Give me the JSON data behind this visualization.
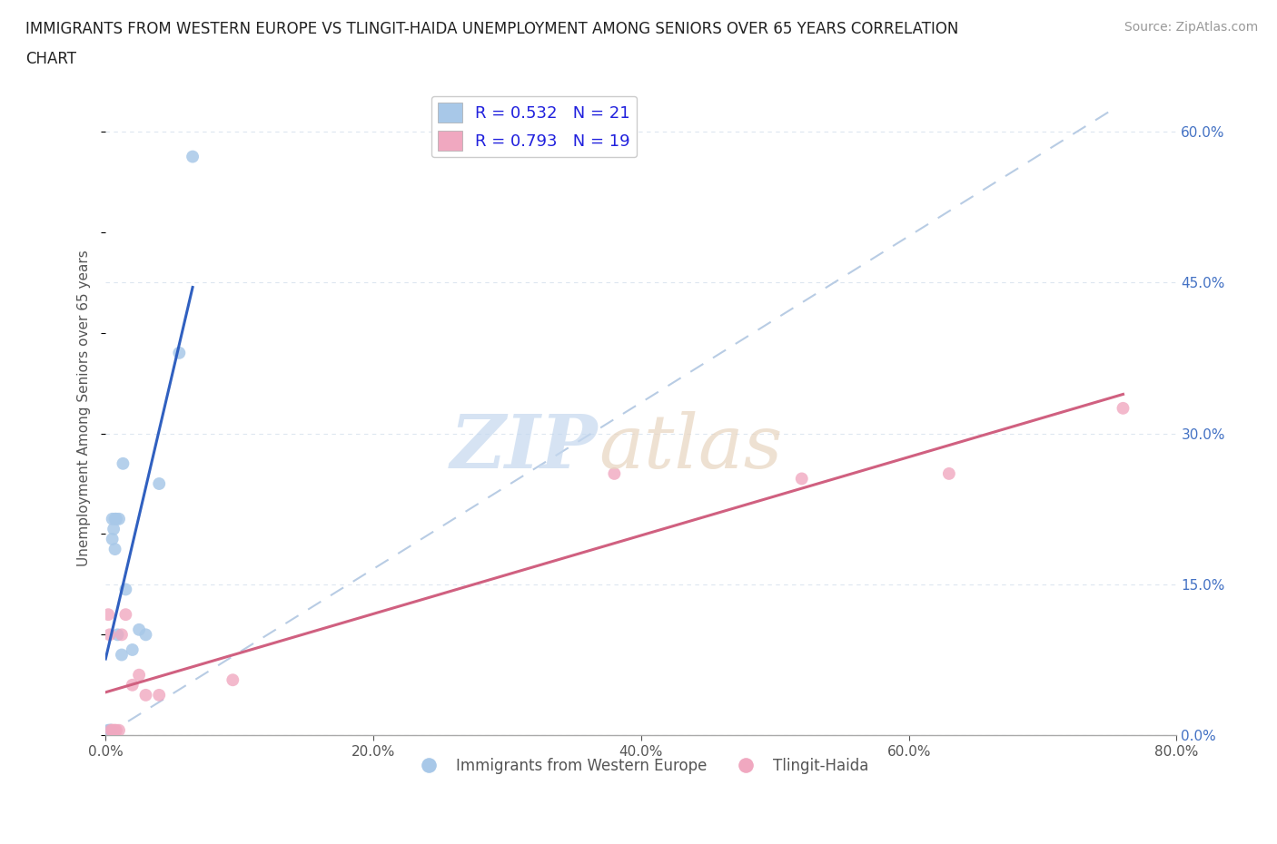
{
  "title_line1": "IMMIGRANTS FROM WESTERN EUROPE VS TLINGIT-HAIDA UNEMPLOYMENT AMONG SENIORS OVER 65 YEARS CORRELATION",
  "title_line2": "CHART",
  "source_text": "Source: ZipAtlas.com",
  "ylabel": "Unemployment Among Seniors over 65 years",
  "xlim": [
    0.0,
    0.8
  ],
  "ylim": [
    0.0,
    0.65
  ],
  "xticks": [
    0.0,
    0.2,
    0.4,
    0.6,
    0.8
  ],
  "xticklabels": [
    "0.0%",
    "20.0%",
    "40.0%",
    "60.0%",
    "80.0%"
  ],
  "ytick_positions": [
    0.0,
    0.15,
    0.3,
    0.45,
    0.6
  ],
  "yticklabels_right": [
    "0.0%",
    "15.0%",
    "30.0%",
    "45.0%",
    "60.0%"
  ],
  "blue_R": 0.532,
  "blue_N": 21,
  "pink_R": 0.793,
  "pink_N": 19,
  "blue_color": "#a8c8e8",
  "pink_color": "#f0a8c0",
  "blue_line_color": "#3060c0",
  "pink_line_color": "#d06080",
  "dash_line_color": "#b8cce4",
  "legend_blue_label": "Immigrants from Western Europe",
  "legend_pink_label": "Tlingit-Haida",
  "blue_x": [
    0.002,
    0.003,
    0.004,
    0.004,
    0.005,
    0.005,
    0.006,
    0.007,
    0.007,
    0.008,
    0.009,
    0.01,
    0.012,
    0.013,
    0.015,
    0.02,
    0.025,
    0.03,
    0.04,
    0.055,
    0.065
  ],
  "blue_y": [
    0.005,
    0.005,
    0.005,
    0.005,
    0.195,
    0.215,
    0.205,
    0.185,
    0.215,
    0.215,
    0.1,
    0.215,
    0.08,
    0.27,
    0.145,
    0.085,
    0.105,
    0.1,
    0.25,
    0.38,
    0.575
  ],
  "pink_x": [
    0.002,
    0.003,
    0.004,
    0.005,
    0.006,
    0.007,
    0.008,
    0.01,
    0.012,
    0.015,
    0.02,
    0.025,
    0.03,
    0.04,
    0.095,
    0.38,
    0.52,
    0.63,
    0.76
  ],
  "pink_y": [
    0.12,
    0.1,
    0.005,
    0.005,
    0.005,
    0.005,
    0.005,
    0.005,
    0.1,
    0.12,
    0.05,
    0.06,
    0.04,
    0.04,
    0.055,
    0.26,
    0.255,
    0.26,
    0.325
  ],
  "blue_marker_size": 100,
  "pink_marker_size": 100,
  "background_color": "#ffffff",
  "grid_color": "#dde6f0",
  "watermark_zip_color": "#c5d8ef",
  "watermark_atlas_color": "#e8d5c0"
}
